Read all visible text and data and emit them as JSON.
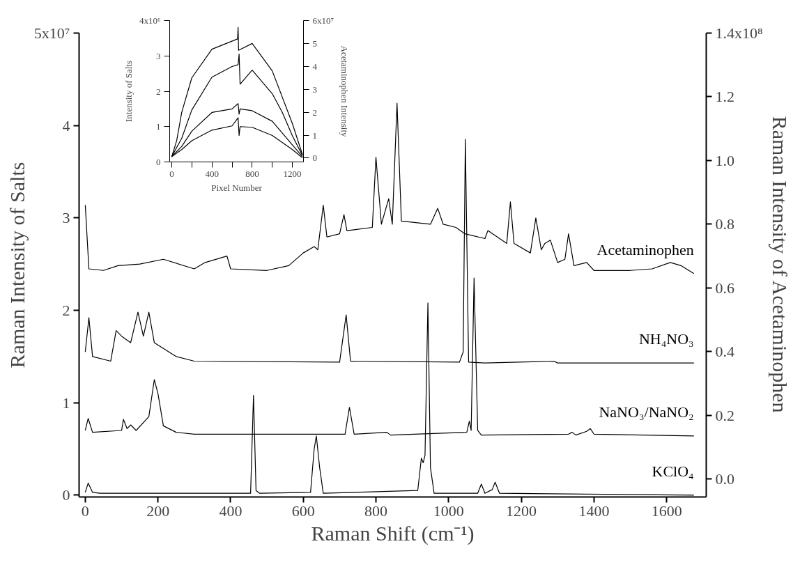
{
  "chart_data": [
    {
      "type": "line",
      "xlabel": "Raman Shift (cm⁻¹)",
      "ylabel": "Raman Intensity of Salts",
      "y2label": "Raman Intensity of Acetaminophen",
      "xlim": [
        -17,
        1709
      ],
      "ylim": [
        -0.02,
        5
      ],
      "y2lim": [
        -0.056,
        1.4
      ],
      "xticks": [
        0,
        200,
        400,
        600,
        800,
        1000,
        1200,
        1400,
        1600
      ],
      "yticks": [
        0,
        1,
        2,
        3,
        4,
        {
          "value": 5,
          "label": null
        }
      ],
      "annotations": [
        "5x10⁷",
        "1.4x10⁸"
      ],
      "y2ticks": [
        {
          "value": 0,
          "label": "0.0"
        },
        {
          "value": 0.2,
          "label": "0.2"
        },
        {
          "value": 0.4,
          "label": "0.4"
        },
        {
          "value": 0.6,
          "label": "0.6"
        },
        {
          "value": 0.8,
          "label": "0.8"
        },
        {
          "value": 1.0,
          "label": "1.0"
        },
        {
          "value": 1.2,
          "label": "1.2"
        },
        {
          "value": 1.4,
          "label": null
        }
      ],
      "grid": false,
      "series": [
        {
          "name": "Acetaminophen",
          "color": "#000000",
          "axis": "y2",
          "x": [
            0,
            10,
            50,
            90,
            150,
            215,
            300,
            330,
            390,
            400,
            500,
            560,
            600,
            630,
            640,
            655,
            665,
            700,
            712,
            720,
            790,
            800,
            815,
            835,
            845,
            858,
            870,
            950,
            970,
            985,
            1020,
            1045,
            1100,
            1108,
            1160,
            1170,
            1180,
            1225,
            1240,
            1255,
            1265,
            1280,
            1300,
            1320,
            1330,
            1345,
            1380,
            1400,
            1500,
            1560,
            1610,
            1640,
            1675
          ],
          "values": [
            0.86,
            0.66,
            0.655,
            0.67,
            0.675,
            0.69,
            0.66,
            0.68,
            0.7,
            0.66,
            0.655,
            0.67,
            0.71,
            0.73,
            0.72,
            0.86,
            0.76,
            0.77,
            0.83,
            0.78,
            0.79,
            1.01,
            0.8,
            0.88,
            0.8,
            1.18,
            0.81,
            0.8,
            0.85,
            0.8,
            0.79,
            0.77,
            0.755,
            0.78,
            0.74,
            0.87,
            0.74,
            0.71,
            0.82,
            0.72,
            0.74,
            0.75,
            0.68,
            0.69,
            0.77,
            0.67,
            0.68,
            0.655,
            0.655,
            0.66,
            0.68,
            0.67,
            0.645
          ]
        },
        {
          "name": "NH₄NO₃",
          "color": "#000000",
          "x": [
            0,
            10,
            20,
            70,
            85,
            100,
            125,
            145,
            160,
            175,
            190,
            250,
            300,
            700,
            718,
            730,
            1030,
            1040,
            1046,
            1055,
            1100,
            1290,
            1300,
            1675
          ],
          "values": [
            1.55,
            1.92,
            1.5,
            1.45,
            1.78,
            1.72,
            1.65,
            1.98,
            1.72,
            1.98,
            1.65,
            1.5,
            1.45,
            1.44,
            1.95,
            1.45,
            1.44,
            1.55,
            3.85,
            1.44,
            1.43,
            1.45,
            1.43,
            1.43
          ]
        },
        {
          "name": "NaNO₃/NaNO₂",
          "color": "#000000",
          "x": [
            0,
            8,
            20,
            100,
            105,
            115,
            125,
            140,
            175,
            190,
            200,
            215,
            250,
            300,
            715,
            727,
            740,
            830,
            840,
            1050,
            1057,
            1062,
            1070,
            1080,
            1090,
            1330,
            1340,
            1350,
            1380,
            1390,
            1400,
            1675
          ],
          "values": [
            0.7,
            0.83,
            0.68,
            0.7,
            0.82,
            0.72,
            0.76,
            0.7,
            0.85,
            1.25,
            1.1,
            0.75,
            0.68,
            0.66,
            0.66,
            0.95,
            0.66,
            0.68,
            0.65,
            0.68,
            0.8,
            0.7,
            2.35,
            0.7,
            0.65,
            0.66,
            0.68,
            0.65,
            0.69,
            0.72,
            0.66,
            0.64
          ]
        },
        {
          "name": "KClO₄",
          "color": "#000000",
          "x": [
            0,
            8,
            20,
            40,
            455,
            463,
            470,
            480,
            620,
            630,
            636,
            645,
            655,
            915,
            925,
            930,
            935,
            943,
            950,
            960,
            1080,
            1090,
            1100,
            1120,
            1128,
            1140,
            1675
          ],
          "values": [
            0.03,
            0.13,
            0.03,
            0.02,
            0.02,
            1.08,
            0.05,
            0.02,
            0.03,
            0.5,
            0.64,
            0.3,
            0.02,
            0.05,
            0.4,
            0.35,
            0.43,
            2.08,
            0.3,
            0.02,
            0.02,
            0.12,
            0.02,
            0.06,
            0.14,
            0.02,
            0.0
          ]
        }
      ]
    },
    {
      "type": "line",
      "xlabel": "Pixel Number",
      "ylabel": "Intensity of Salts",
      "y2label": "Acetaminophen Intensity",
      "xlim": [
        -20,
        1310
      ],
      "ylim": [
        0,
        4
      ],
      "y2lim": [
        -0.17,
        6
      ],
      "xticks": [
        0,
        {
          "value": 200,
          "label": null
        },
        400,
        {
          "value": 600,
          "label": null
        },
        800,
        {
          "value": 1000,
          "label": null
        },
        1200
      ],
      "yticks": [
        0,
        1,
        2,
        3,
        {
          "value": 4,
          "label": null
        }
      ],
      "y2ticks": [
        0,
        1,
        2,
        3,
        4,
        5,
        {
          "value": 6,
          "label": null
        }
      ],
      "annotations": [
        "4x10⁶",
        "6x10⁷"
      ],
      "grid": false,
      "series": [
        {
          "color": "#000000",
          "axis": "y2",
          "x": [
            0,
            50,
            100,
            200,
            400,
            655,
            660,
            665,
            800,
            1000,
            1200,
            1300
          ],
          "values": [
            0.05,
            0.77,
            2.0,
            3.5,
            4.75,
            5.2,
            5.7,
            4.7,
            5.0,
            3.8,
            1.5,
            0.15
          ]
        },
        {
          "color": "#000000",
          "x": [
            0,
            100,
            200,
            400,
            600,
            660,
            670,
            680,
            800,
            1000,
            1100,
            1200,
            1300
          ],
          "values": [
            0.15,
            0.67,
            1.47,
            2.4,
            2.7,
            2.75,
            3.05,
            2.2,
            2.6,
            1.93,
            1.4,
            0.74,
            0.18
          ]
        },
        {
          "color": "#000000",
          "x": [
            0,
            100,
            200,
            400,
            600,
            660,
            670,
            680,
            800,
            1000,
            1200,
            1300
          ],
          "values": [
            0.15,
            0.44,
            0.87,
            1.4,
            1.5,
            1.65,
            1.35,
            1.5,
            1.45,
            1.15,
            0.48,
            0.15
          ]
        },
        {
          "color": "#000000",
          "x": [
            0,
            100,
            200,
            400,
            600,
            660,
            670,
            680,
            800,
            1000,
            1200,
            1300
          ],
          "values": [
            0.15,
            0.35,
            0.6,
            0.9,
            1.02,
            1.25,
            0.75,
            1.0,
            0.98,
            0.75,
            0.35,
            0.12
          ]
        }
      ]
    }
  ]
}
